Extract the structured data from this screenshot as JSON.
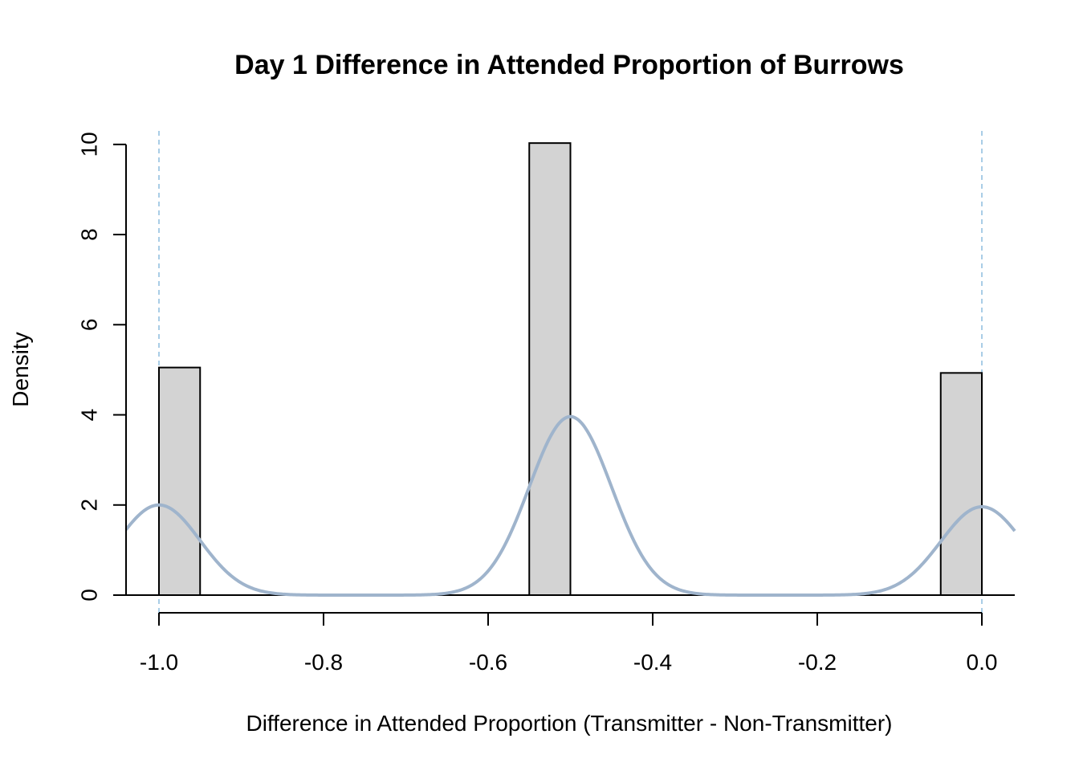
{
  "chart_data": {
    "type": "bar",
    "title": "Day 1 Difference in Attended Proportion of Burrows",
    "xlabel": "Difference in Attended Proportion (Transmitter - Non-Transmitter)",
    "ylabel": "Density",
    "xlim": [
      -1.04,
      0.04
    ],
    "ylim": [
      0,
      10.3
    ],
    "x_ticks": [
      -1.0,
      -0.8,
      -0.6,
      -0.4,
      -0.2,
      0.0
    ],
    "x_tick_labels": [
      "-1.0",
      "-0.8",
      "-0.6",
      "-0.4",
      "-0.2",
      "0.0"
    ],
    "y_ticks": [
      0,
      2,
      4,
      6,
      8,
      10
    ],
    "y_tick_labels": [
      "0",
      "2",
      "4",
      "6",
      "8",
      "10"
    ],
    "grid": false,
    "bins": [
      {
        "x0": -1.0,
        "x1": -0.95,
        "density": 5.05
      },
      {
        "x0": -0.55,
        "x1": -0.5,
        "density": 10.03
      },
      {
        "x0": -0.05,
        "x1": 0.0,
        "density": 4.93
      }
    ],
    "density_curve": {
      "components": [
        {
          "mean": -1.0,
          "height": 2.0
        },
        {
          "mean": -0.5,
          "height": 3.96
        },
        {
          "mean": 0.0,
          "height": 1.96
        }
      ],
      "sd": 0.05,
      "color": "#9fb4cc"
    },
    "reference_lines": [
      {
        "x": -1.0,
        "color": "#a9cde6"
      },
      {
        "x": 0.0,
        "color": "#a9cde6"
      }
    ],
    "bar_fill": "#d3d3d3",
    "bar_stroke": "#000000"
  }
}
